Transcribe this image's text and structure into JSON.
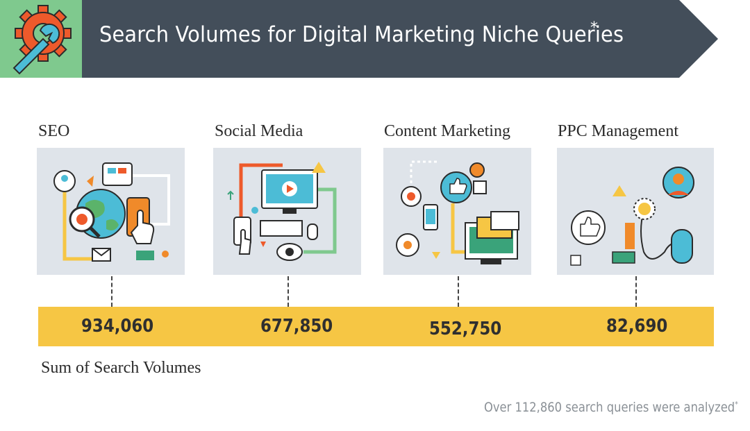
{
  "banner": {
    "title": "Search Volumes for Digital Marketing Niche Queries",
    "title_mark": "*",
    "icon": "gear-wrench-icon",
    "colors": {
      "banner": "#434e5a",
      "icon_bg": "#7fc98e",
      "gear": "#ee5a2b",
      "wrench": "#4cbcd6"
    }
  },
  "categories": [
    {
      "label": "SEO",
      "value": "934,060",
      "icon": "seo-illustration"
    },
    {
      "label": "Social Media",
      "value": "677,850",
      "icon": "social-media-illustration"
    },
    {
      "label": "Content Marketing",
      "value": "552,750",
      "icon": "content-marketing-illustration"
    },
    {
      "label": "PPC Management",
      "value": "82,690",
      "icon": "ppc-management-illustration"
    }
  ],
  "bar_color": "#f6c644",
  "sum_label": "Sum of Search Volumes",
  "footnote": {
    "text": "Over 112,860 search queries were analyzed",
    "mark": "*"
  }
}
